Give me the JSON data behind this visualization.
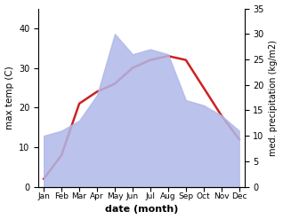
{
  "months": [
    "Jan",
    "Feb",
    "Mar",
    "Apr",
    "May",
    "Jun",
    "Jul",
    "Aug",
    "Sep",
    "Oct",
    "Nov",
    "Dec"
  ],
  "month_indices": [
    0,
    1,
    2,
    3,
    4,
    5,
    6,
    7,
    8,
    9,
    10,
    11
  ],
  "precipitation": [
    10.0,
    11.0,
    13.0,
    18.0,
    30.0,
    26.0,
    27.0,
    26.0,
    17.0,
    16.0,
    14.0,
    11.0
  ],
  "max_temp": [
    2.0,
    8.0,
    21.0,
    24.0,
    26.0,
    30.0,
    32.0,
    33.0,
    32.0,
    25.0,
    18.0,
    12.0
  ],
  "precip_color": "#b0b8e8",
  "temp_color": "#cc2222",
  "xlabel": "date (month)",
  "ylabel_left": "max temp (C)",
  "ylabel_right": "med. precipitation (kg/m2)",
  "ylim_left": [
    0,
    45
  ],
  "ylim_right": [
    0,
    35
  ],
  "yticks_left": [
    0,
    10,
    20,
    30,
    40
  ],
  "yticks_right": [
    0,
    5,
    10,
    15,
    20,
    25,
    30,
    35
  ],
  "background_color": "#ffffff"
}
